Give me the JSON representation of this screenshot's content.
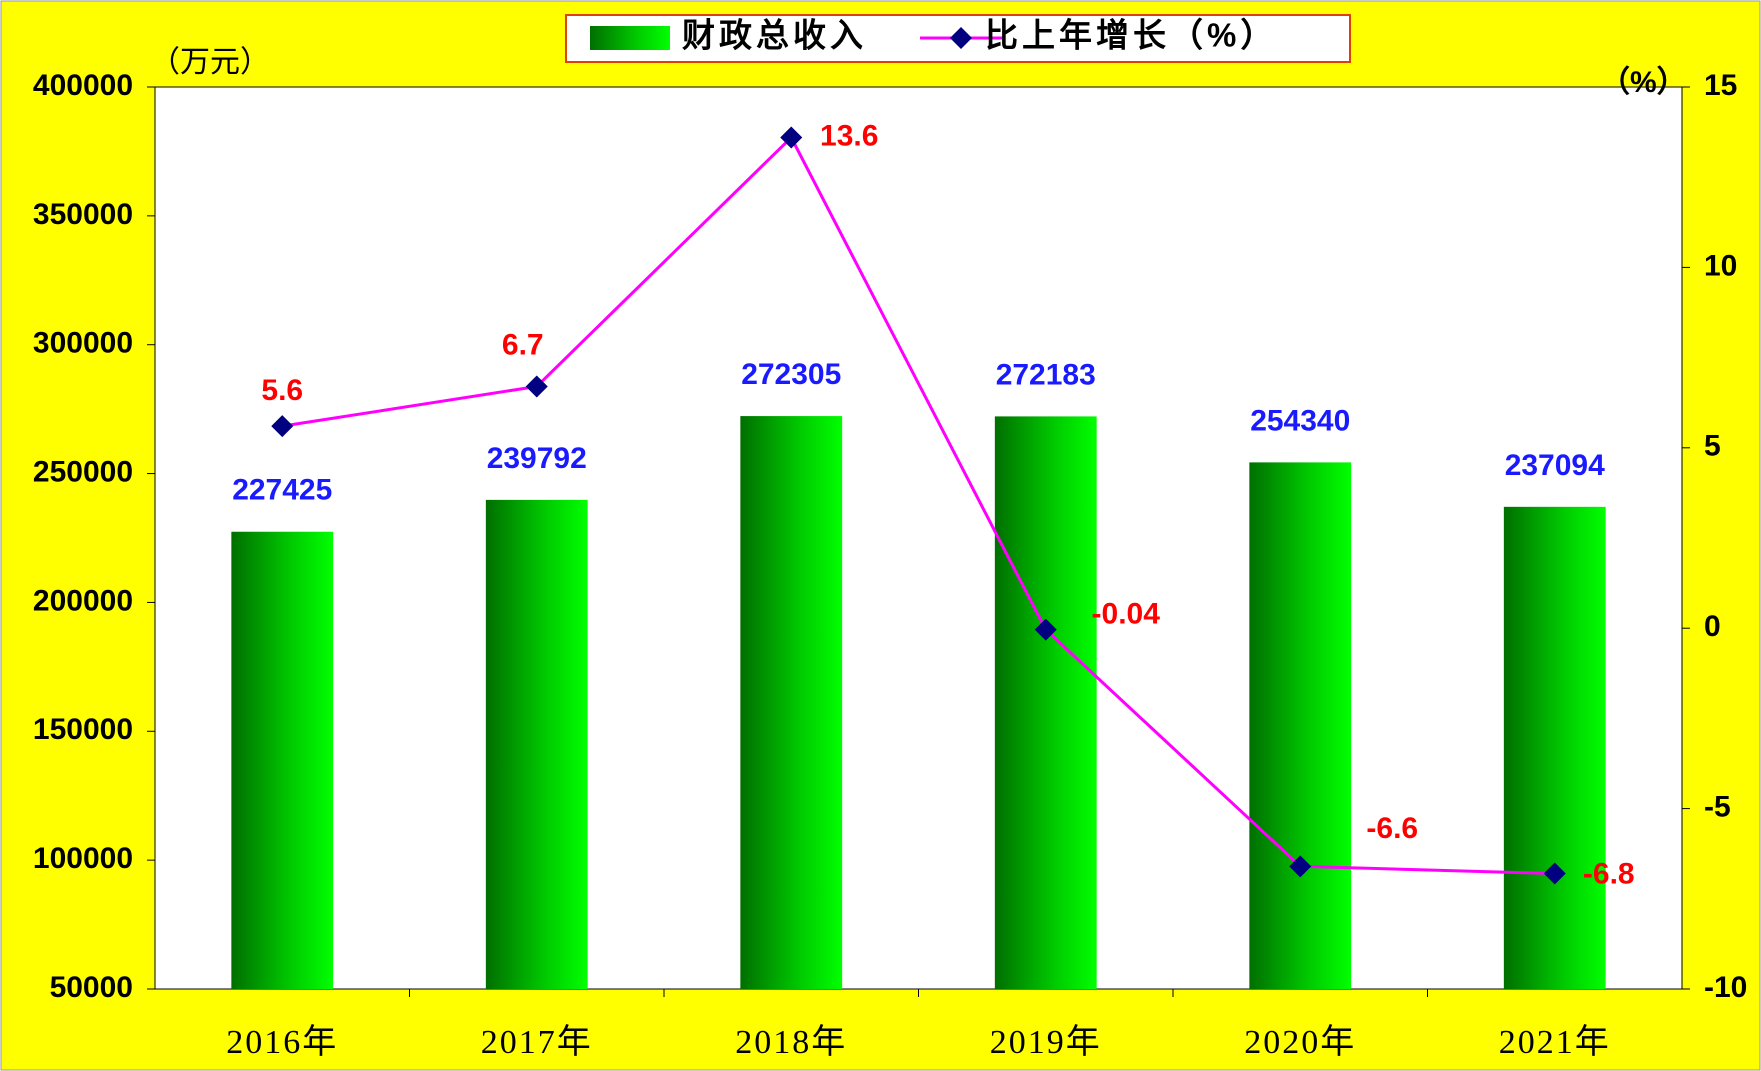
{
  "chart_data": {
    "type": "bar-line",
    "y_unit": "（万元）",
    "y2_unit": "（%）",
    "categories": [
      "2016年",
      "2017年",
      "2018年",
      "2019年",
      "2020年",
      "2021年"
    ],
    "series": [
      {
        "name": "财政总收入",
        "type": "bar",
        "color": "#00ee00",
        "values": [
          227425,
          239792,
          272305,
          272183,
          254340,
          237094
        ]
      },
      {
        "name": "比上年增长（%）",
        "type": "line",
        "axis": "y2",
        "color": "#ff00ff",
        "marker_color": "#000080",
        "values": [
          5.6,
          6.7,
          13.6,
          -0.04,
          -6.6,
          -6.8
        ]
      }
    ],
    "ylim": [
      50000,
      400000
    ],
    "yticks": [
      50000,
      100000,
      150000,
      200000,
      250000,
      300000,
      350000,
      400000
    ],
    "y2lim": [
      -10,
      15
    ],
    "y2ticks": [
      -10,
      -5,
      0,
      5,
      10,
      15
    ]
  }
}
